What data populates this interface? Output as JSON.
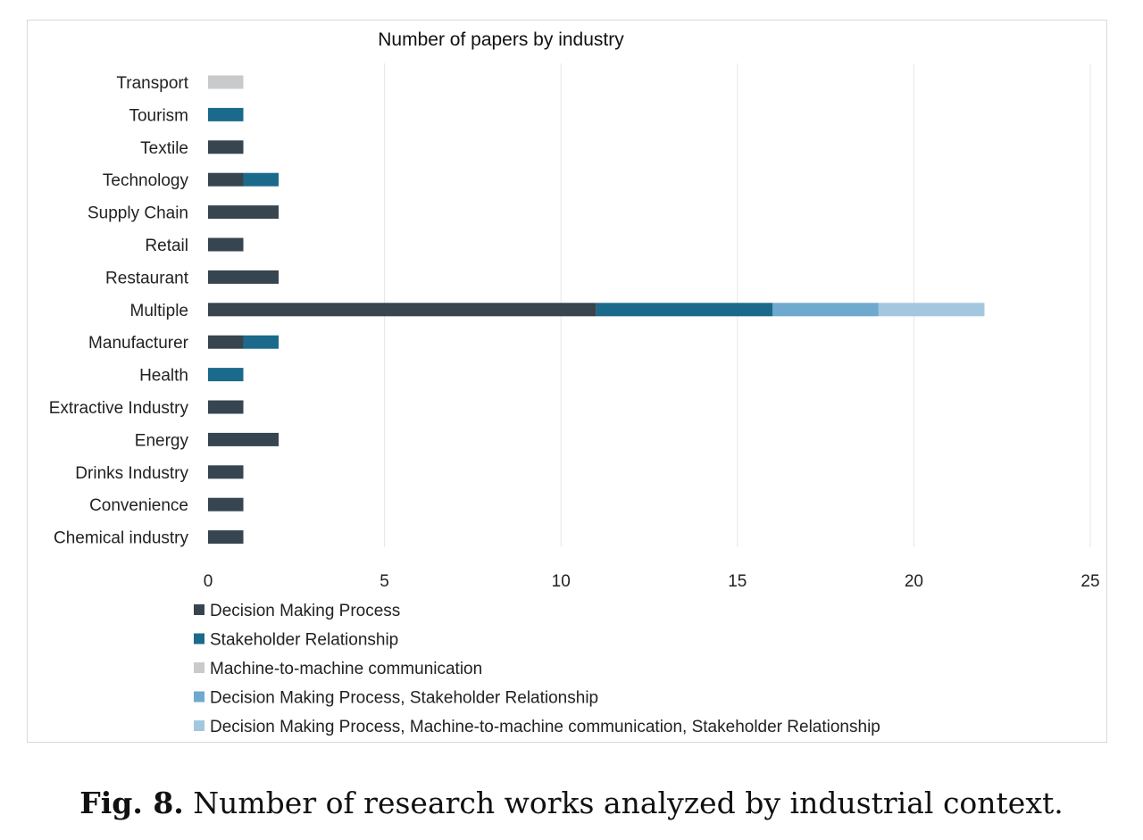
{
  "chart_data": {
    "type": "bar",
    "orientation": "horizontal",
    "stacked": true,
    "title": "Number of papers by industry",
    "xlabel": "",
    "ylabel": "",
    "xlim": [
      0,
      25
    ],
    "xticks": [
      0,
      5,
      10,
      15,
      20,
      25
    ],
    "grid": "vertical",
    "legend_position": "bottom",
    "categories": [
      "Transport",
      "Tourism",
      "Textile",
      "Technology",
      "Supply Chain",
      "Retail",
      "Restaurant",
      "Multiple",
      "Manufacturer",
      "Health",
      "Extractive Industry",
      "Energy",
      "Drinks Industry",
      "Convenience",
      "Chemical industry"
    ],
    "series": [
      {
        "name": "Decision Making Process",
        "color": "#36454f",
        "values": [
          0,
          0,
          1,
          1,
          2,
          1,
          2,
          11,
          1,
          0,
          1,
          2,
          1,
          1,
          1
        ]
      },
      {
        "name": "Stakeholder Relationship",
        "color": "#1b6a8c",
        "values": [
          0,
          1,
          0,
          1,
          0,
          0,
          0,
          5,
          1,
          1,
          0,
          0,
          0,
          0,
          0
        ]
      },
      {
        "name": "Machine-to-machine communication",
        "color": "#c8cacc",
        "values": [
          1,
          0,
          0,
          0,
          0,
          0,
          0,
          0,
          0,
          0,
          0,
          0,
          0,
          0,
          0
        ]
      },
      {
        "name": "Decision Making Process, Stakeholder Relationship",
        "color": "#6fa9cd",
        "values": [
          0,
          0,
          0,
          0,
          0,
          0,
          0,
          3,
          0,
          0,
          0,
          0,
          0,
          0,
          0
        ]
      },
      {
        "name": "Decision Making Process, Machine-to-machine communication, Stakeholder Relationship",
        "color": "#a3c7de",
        "values": [
          0,
          0,
          0,
          0,
          0,
          0,
          0,
          3,
          0,
          0,
          0,
          0,
          0,
          0,
          0
        ]
      }
    ]
  },
  "caption": {
    "label": "Fig. 8.",
    "text": "Number of research works analyzed by industrial context."
  }
}
